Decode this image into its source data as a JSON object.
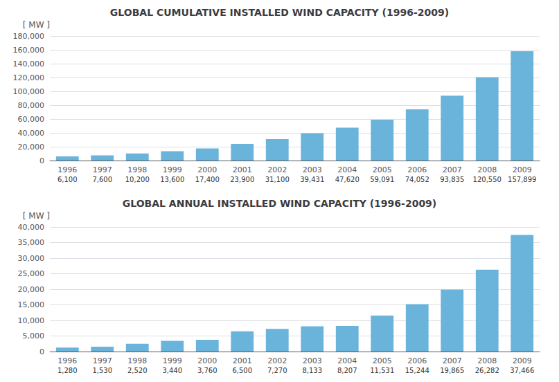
{
  "chart_data": [
    {
      "type": "bar",
      "title": "GLOBAL CUMULATIVE INSTALLED WIND CAPACITY (1996-2009)",
      "ylabel": "[ MW ]",
      "categories": [
        "1996",
        "1997",
        "1998",
        "1999",
        "2000",
        "2001",
        "2002",
        "2003",
        "2004",
        "2005",
        "2006",
        "2007",
        "2008",
        "2009"
      ],
      "values": [
        6100,
        7600,
        10200,
        13600,
        17400,
        23900,
        31100,
        39431,
        47620,
        59091,
        74052,
        93835,
        120550,
        157899
      ],
      "value_labels": [
        "6,100",
        "7,600",
        "10,200",
        "13,600",
        "17,400",
        "23,900",
        "31,100",
        "39,431",
        "47,620",
        "59,091",
        "74,052",
        "93,835",
        "120,550",
        "157,899"
      ],
      "data_labels": true,
      "color": "#6ab4dc",
      "ylim": [
        0,
        180000
      ],
      "yticks": [
        0,
        {
          "value": 20000,
          "label": "20,000"
        },
        {
          "value": 40000,
          "label": "40,000"
        },
        {
          "value": 60000,
          "label": "60,000"
        },
        {
          "value": 80000,
          "label": "80,000"
        },
        {
          "value": 100000,
          "label": "100,000"
        },
        {
          "value": 120000,
          "label": "120,000"
        },
        {
          "value": 140000,
          "label": "140,000"
        },
        {
          "value": 160000,
          "label": "160,000"
        },
        {
          "value": 180000,
          "label": "180,000"
        }
      ],
      "grid": true
    },
    {
      "type": "bar",
      "title": "GLOBAL ANNUAL INSTALLED WIND CAPACITY (1996-2009)",
      "ylabel": "[ MW ]",
      "categories": [
        "1996",
        "1997",
        "1998",
        "1999",
        "2000",
        "2001",
        "2002",
        "2003",
        "2004",
        "2005",
        "2006",
        "2007",
        "2008",
        "2009"
      ],
      "values": [
        1280,
        1530,
        2520,
        3440,
        3760,
        6500,
        7270,
        8133,
        8207,
        11531,
        15244,
        19865,
        26282,
        37466
      ],
      "value_labels": [
        "1,280",
        "1,530",
        "2,520",
        "3,440",
        "3,760",
        "6,500",
        "7,270",
        "8,133",
        "8,207",
        "11,531",
        "15,244",
        "19,865",
        "26,282",
        "37,466"
      ],
      "data_labels": true,
      "color": "#6ab4dc",
      "ylim": [
        0,
        40000
      ],
      "yticks": [
        0,
        {
          "value": 5000,
          "label": "5,000"
        },
        {
          "value": 10000,
          "label": "10,000"
        },
        {
          "value": 15000,
          "label": "15,000"
        },
        {
          "value": 20000,
          "label": "20,000"
        },
        {
          "value": 25000,
          "label": "25,000"
        },
        {
          "value": 30000,
          "label": "30,000"
        },
        {
          "value": 35000,
          "label": "35,000"
        },
        {
          "value": 40000,
          "label": "40,000"
        }
      ],
      "grid": true
    }
  ]
}
